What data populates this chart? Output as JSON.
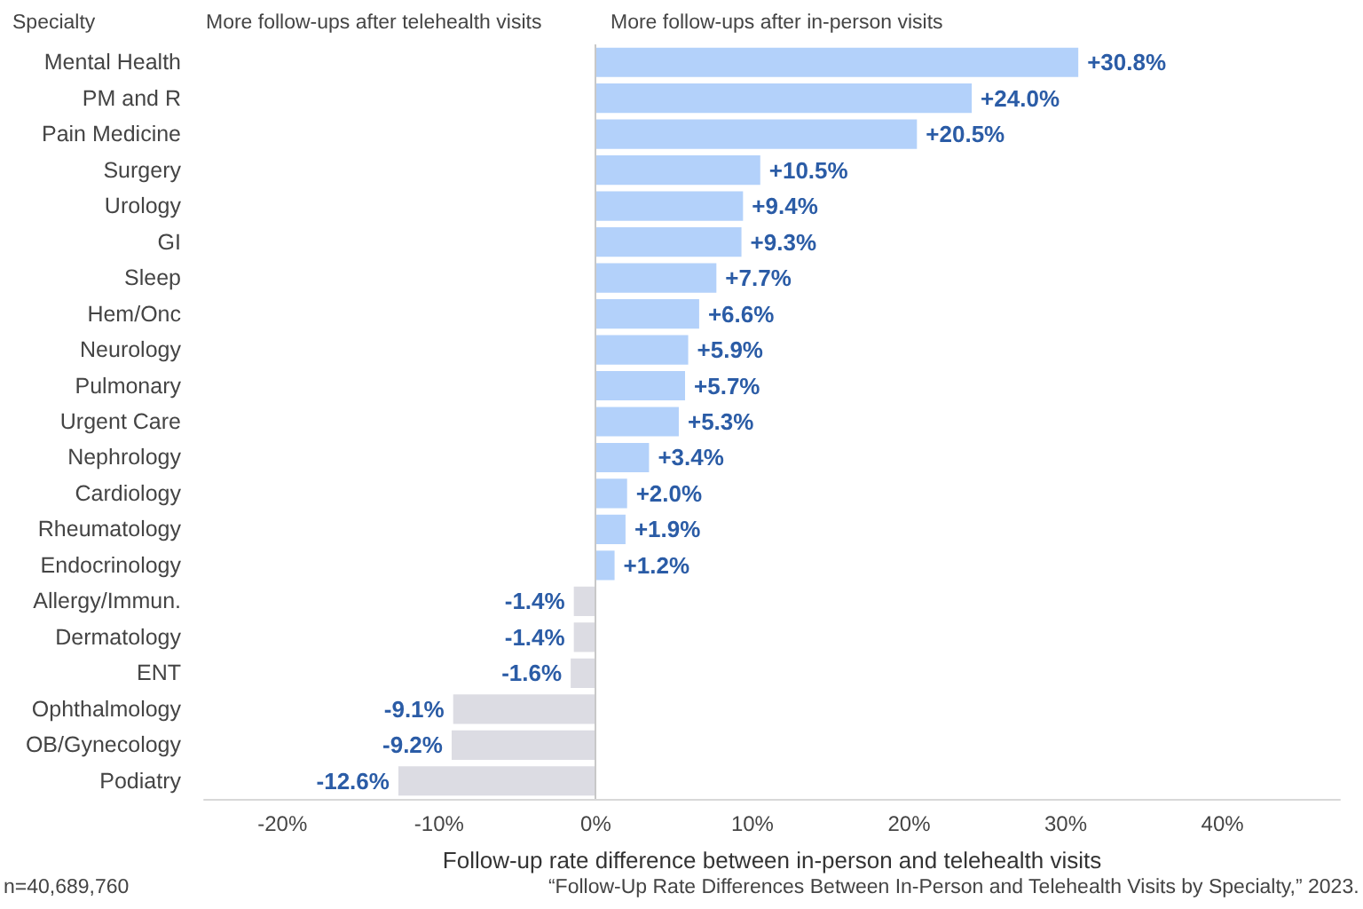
{
  "chart_data": {
    "type": "bar",
    "orientation": "horizontal",
    "xlabel": "Follow-up rate difference between in-person and telehealth visits",
    "categories": [
      "Mental Health",
      "PM and R",
      "Pain Medicine",
      "Surgery",
      "Urology",
      "GI",
      "Sleep",
      "Hem/Onc",
      "Neurology",
      "Pulmonary",
      "Urgent Care",
      "Nephrology",
      "Cardiology",
      "Rheumatology",
      "Endocrinology",
      "Allergy/Immun.",
      "Dermatology",
      "ENT",
      "Ophthalmology",
      "OB/Gynecology",
      "Podiatry"
    ],
    "values": [
      30.8,
      24.0,
      20.5,
      10.5,
      9.4,
      9.3,
      7.7,
      6.6,
      5.9,
      5.7,
      5.3,
      3.4,
      2.0,
      1.9,
      1.2,
      -1.4,
      -1.4,
      -1.6,
      -9.1,
      -9.2,
      -12.6
    ],
    "value_labels": [
      "+30.8%",
      "+24.0%",
      "+20.5%",
      "+10.5%",
      "+9.4%",
      "+9.3%",
      "+7.7%",
      "+6.6%",
      "+5.9%",
      "+5.7%",
      "+5.3%",
      "+3.4%",
      "+2.0%",
      "+1.9%",
      "+1.2%",
      "-1.4%",
      "-1.4%",
      "-1.6%",
      "-9.1%",
      "-9.2%",
      "-12.6%"
    ],
    "colors": [
      "#b3d1fa",
      "#b3d1fa",
      "#b3d1fa",
      "#b3d1fa",
      "#b3d1fa",
      "#b3d1fa",
      "#b3d1fa",
      "#b3d1fa",
      "#b3d1fa",
      "#b3d1fa",
      "#b3d1fa",
      "#b3d1fa",
      "#b3d1fa",
      "#b3d1fa",
      "#b3d1fa",
      "#dcdce3",
      "#dcdce3",
      "#dcdce3",
      "#dcdce3",
      "#dcdce3",
      "#dcdce3"
    ],
    "xlim": [
      -25,
      47.5
    ],
    "xticks": [
      {
        "value": -20,
        "label": "-20%"
      },
      {
        "value": -10,
        "label": "-10%"
      },
      {
        "value": 0,
        "label": "0%"
      },
      {
        "value": 10,
        "label": "10%"
      },
      {
        "value": 20,
        "label": "20%"
      },
      {
        "value": 30,
        "label": "30%"
      },
      {
        "value": 40,
        "label": "40%"
      }
    ],
    "grid": false,
    "ref_lines": [
      {
        "axis": "x",
        "value": 0,
        "color": "#c8c8c8"
      }
    ],
    "annotations": [
      "Specialty",
      "More follow-ups after telehealth visits",
      "More follow-ups after in-person visits",
      "n=40,689,760",
      "“Follow-Up Rate Differences Between In-Person and Telehealth Visits by Specialty,” 2023."
    ]
  }
}
